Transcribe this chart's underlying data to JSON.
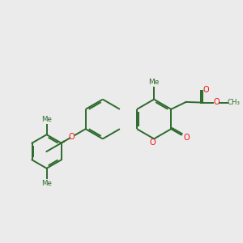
{
  "bg_color": "#ebebeb",
  "bond_color": "#2d6b2d",
  "heteroatom_color": "#ee1111",
  "lw": 1.4,
  "figsize": [
    3.0,
    3.0
  ],
  "dpi": 100,
  "xlim": [
    0.0,
    10.0
  ],
  "ylim": [
    1.0,
    8.5
  ]
}
